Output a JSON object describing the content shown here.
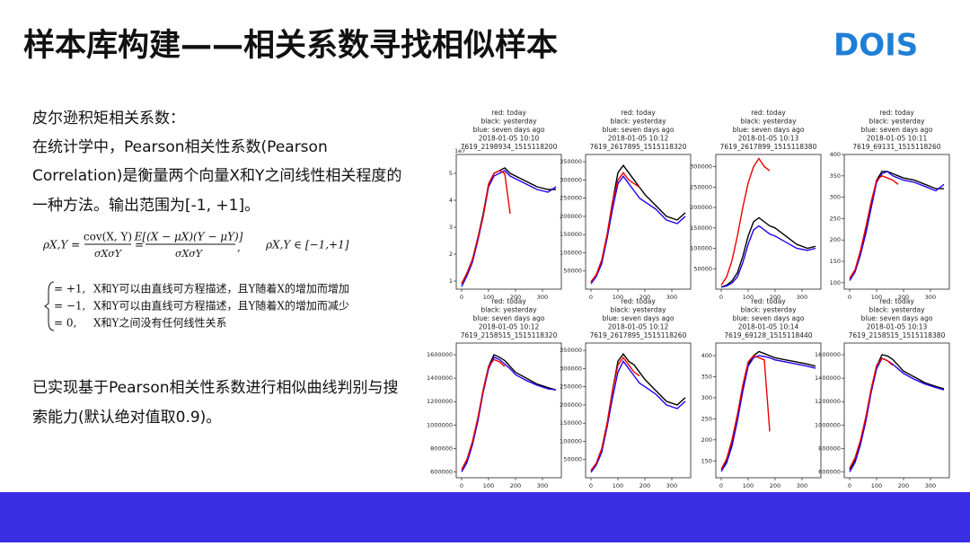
{
  "header": {
    "title": "样本库构建——相关系数寻找相似样本",
    "logo": "DOIS"
  },
  "text": {
    "heading": "皮尔逊积矩相关系数：",
    "body": [
      "在统计学中，Pearson相关性系数(Pearson",
      "Correlation)是衡量两个向量X和Y之间线性相关程度的",
      "一种方法。输出范围为[-1, +1]。"
    ],
    "formula": {
      "lhs": "ρX,Y =",
      "num1": "cov(X, Y)",
      "den1": "σXσY",
      "eq2": "=",
      "num2": "E[(X − μX)(Y − μY)]",
      "den2": "σXσY",
      "comma": ",",
      "range": "ρX,Y ∈ [−1,+1]"
    },
    "cases": [
      {
        "value": "= +1,",
        "text": "X和Y可以由直线可方程描述，且Y随着X的增加而增加"
      },
      {
        "value": "= −1,",
        "text": "X和Y可以由直线可方程描述，且Y随着X的增加而减少"
      },
      {
        "value": "= 0,",
        "text": "X和Y之间没有任何线性关系"
      }
    ],
    "conclusion": [
      "已实现基于Pearson相关性系数进行相似曲线判别与搜",
      "索能力(默认绝对值取0.9)。"
    ]
  },
  "chart_data": [
    {
      "type": "line",
      "title_lines": [
        "red: today",
        "black: yesterday",
        "blue: seven days ago",
        "2018-01-05 10:10",
        "7619_2198934_1515118200"
      ],
      "offset_label": "1e7",
      "x": [
        0,
        20,
        40,
        60,
        80,
        100,
        120,
        140,
        160,
        180,
        200,
        240,
        280,
        320,
        350
      ],
      "xlim": [
        -20,
        370
      ],
      "xticks": [
        0,
        100,
        200,
        300
      ],
      "ylim": [
        0.7,
        5.7
      ],
      "yticks": [
        1,
        2,
        3,
        4,
        5
      ],
      "series": [
        {
          "color": "#000000",
          "values": [
            0.9,
            1.3,
            1.8,
            2.6,
            3.5,
            4.6,
            5.0,
            5.1,
            5.2,
            5.0,
            4.9,
            4.7,
            4.5,
            4.4,
            4.4
          ]
        },
        {
          "color": "#2200ee",
          "values": [
            0.8,
            1.2,
            1.7,
            2.5,
            3.4,
            4.5,
            4.9,
            5.0,
            5.1,
            4.9,
            4.8,
            4.6,
            4.4,
            4.3,
            4.5
          ]
        },
        {
          "color": "#ee0000",
          "values": [
            0.9,
            1.3,
            1.8,
            2.6,
            3.4,
            4.6,
            5.0,
            5.1,
            5.0,
            3.5,
            null,
            null,
            null,
            null,
            null
          ]
        }
      ]
    },
    {
      "type": "line",
      "title_lines": [
        "red: today",
        "black: yesterday",
        "blue: seven days ago",
        "2018-01-05 10:12",
        "7619_2617895_1515118320"
      ],
      "x": [
        0,
        20,
        40,
        60,
        80,
        100,
        120,
        140,
        160,
        180,
        200,
        240,
        280,
        320,
        350
      ],
      "xlim": [
        -20,
        370
      ],
      "xticks": [
        0,
        100,
        200,
        300
      ],
      "ylim": [
        0,
        370000
      ],
      "yticks": [
        50000,
        100000,
        150000,
        200000,
        250000,
        300000,
        350000
      ],
      "series": [
        {
          "color": "#000000",
          "values": [
            20000,
            40000,
            80000,
            150000,
            240000,
            320000,
            340000,
            320000,
            300000,
            280000,
            260000,
            230000,
            200000,
            190000,
            210000
          ]
        },
        {
          "color": "#2200ee",
          "values": [
            15000,
            35000,
            70000,
            140000,
            220000,
            290000,
            310000,
            290000,
            270000,
            250000,
            240000,
            220000,
            190000,
            180000,
            200000
          ]
        },
        {
          "color": "#ee0000",
          "values": [
            20000,
            40000,
            80000,
            150000,
            240000,
            300000,
            320000,
            300000,
            290000,
            280000,
            null,
            null,
            null,
            null,
            null
          ]
        }
      ]
    },
    {
      "type": "line",
      "title_lines": [
        "red: today",
        "black: yesterday",
        "blue: seven days ago",
        "2018-01-05 10:13",
        "7619_2617899_1515118380"
      ],
      "x": [
        0,
        20,
        40,
        60,
        80,
        100,
        120,
        140,
        160,
        180,
        200,
        240,
        280,
        320,
        350
      ],
      "xlim": [
        -20,
        370
      ],
      "xticks": [
        0,
        100,
        200,
        300
      ],
      "ylim": [
        0,
        330000
      ],
      "yticks": [
        50000,
        100000,
        150000,
        200000,
        250000,
        300000
      ],
      "series": [
        {
          "color": "#000000",
          "values": [
            5000,
            10000,
            20000,
            40000,
            80000,
            130000,
            165000,
            175000,
            165000,
            155000,
            150000,
            130000,
            110000,
            100000,
            105000
          ]
        },
        {
          "color": "#2200ee",
          "values": [
            5000,
            8000,
            15000,
            30000,
            65000,
            110000,
            145000,
            155000,
            145000,
            135000,
            130000,
            115000,
            100000,
            95000,
            100000
          ]
        },
        {
          "color": "#ee0000",
          "values": [
            10000,
            30000,
            70000,
            130000,
            200000,
            260000,
            300000,
            320000,
            300000,
            290000,
            null,
            null,
            null,
            null,
            null
          ]
        }
      ]
    },
    {
      "type": "line",
      "title_lines": [
        "red: today",
        "black: yesterday",
        "blue: seven days ago",
        "2018-01-05 10:11",
        "7619_69131_1515118260"
      ],
      "x": [
        0,
        20,
        40,
        60,
        80,
        100,
        120,
        140,
        160,
        180,
        200,
        240,
        280,
        320,
        350
      ],
      "xlim": [
        -20,
        370
      ],
      "xticks": [
        0,
        100,
        200,
        300
      ],
      "ylim": [
        85,
        400
      ],
      "yticks": [
        100,
        150,
        200,
        250,
        300,
        350,
        400
      ],
      "series": [
        {
          "color": "#000000",
          "values": [
            110,
            130,
            170,
            220,
            280,
            340,
            360,
            360,
            355,
            350,
            345,
            340,
            330,
            320,
            320
          ]
        },
        {
          "color": "#2200ee",
          "values": [
            105,
            125,
            165,
            215,
            275,
            335,
            355,
            360,
            350,
            345,
            340,
            335,
            325,
            315,
            330
          ]
        },
        {
          "color": "#ee0000",
          "values": [
            110,
            130,
            175,
            230,
            290,
            340,
            350,
            345,
            340,
            330,
            null,
            null,
            null,
            null,
            null
          ]
        }
      ]
    },
    {
      "type": "line",
      "title_lines": [
        "red: today",
        "black: yesterday",
        "blue: seven days ago",
        "2018-01-05 10:12",
        "7619_2158515_1515118320"
      ],
      "x": [
        0,
        20,
        40,
        60,
        80,
        100,
        120,
        140,
        160,
        180,
        200,
        240,
        280,
        320,
        350
      ],
      "xlim": [
        -20,
        370
      ],
      "xticks": [
        0,
        100,
        200,
        300
      ],
      "ylim": [
        550000,
        1700000
      ],
      "yticks": [
        600000,
        800000,
        1000000,
        1200000,
        1400000,
        1600000
      ],
      "series": [
        {
          "color": "#000000",
          "values": [
            620000,
            700000,
            850000,
            1050000,
            1300000,
            1500000,
            1600000,
            1580000,
            1550000,
            1500000,
            1450000,
            1400000,
            1350000,
            1320000,
            1300000
          ]
        },
        {
          "color": "#2200ee",
          "values": [
            600000,
            680000,
            830000,
            1030000,
            1280000,
            1480000,
            1580000,
            1560000,
            1520000,
            1480000,
            1430000,
            1380000,
            1340000,
            1310000,
            1300000
          ]
        },
        {
          "color": "#ee0000",
          "values": [
            620000,
            710000,
            860000,
            1060000,
            1300000,
            1500000,
            1560000,
            1540000,
            1500000,
            null,
            null,
            null,
            null,
            null,
            null
          ]
        }
      ]
    },
    {
      "type": "line",
      "title_lines": [
        "red: today",
        "black: yesterday",
        "blue: seven days ago",
        "2018-01-05 10:12",
        "7619_2617895_1515118260"
      ],
      "x": [
        0,
        20,
        40,
        60,
        80,
        100,
        120,
        140,
        160,
        180,
        200,
        240,
        280,
        320,
        350
      ],
      "xlim": [
        -20,
        370
      ],
      "xticks": [
        0,
        100,
        200,
        300
      ],
      "ylim": [
        0,
        370000
      ],
      "yticks": [
        50000,
        100000,
        150000,
        200000,
        250000,
        300000,
        350000
      ],
      "series": [
        {
          "color": "#000000",
          "values": [
            20000,
            40000,
            80000,
            150000,
            240000,
            320000,
            340000,
            320000,
            310000,
            290000,
            270000,
            240000,
            210000,
            200000,
            220000
          ]
        },
        {
          "color": "#2200ee",
          "values": [
            15000,
            35000,
            70000,
            140000,
            220000,
            290000,
            320000,
            300000,
            280000,
            260000,
            250000,
            230000,
            200000,
            190000,
            210000
          ]
        },
        {
          "color": "#ee0000",
          "values": [
            20000,
            40000,
            80000,
            150000,
            240000,
            310000,
            330000,
            310000,
            290000,
            280000,
            null,
            null,
            null,
            null,
            null
          ]
        }
      ]
    },
    {
      "type": "line",
      "title_lines": [
        "red: today",
        "black: yesterday",
        "blue: seven days ago",
        "2018-01-05 10:14",
        "7619_69128_1515118440"
      ],
      "x": [
        0,
        20,
        40,
        60,
        80,
        100,
        120,
        140,
        160,
        180,
        200,
        240,
        280,
        320,
        350
      ],
      "xlim": [
        -20,
        370
      ],
      "xticks": [
        0,
        100,
        200,
        300
      ],
      "ylim": [
        110,
        430
      ],
      "yticks": [
        150,
        200,
        250,
        300,
        350,
        400
      ],
      "series": [
        {
          "color": "#000000",
          "values": [
            130,
            150,
            190,
            250,
            320,
            380,
            400,
            410,
            405,
            400,
            395,
            390,
            385,
            380,
            375
          ]
        },
        {
          "color": "#2200ee",
          "values": [
            125,
            145,
            185,
            245,
            315,
            375,
            395,
            400,
            398,
            395,
            390,
            385,
            380,
            375,
            370
          ]
        },
        {
          "color": "#ee0000",
          "values": [
            130,
            155,
            200,
            260,
            330,
            385,
            400,
            395,
            390,
            220,
            null,
            null,
            null,
            null,
            null
          ]
        }
      ]
    },
    {
      "type": "line",
      "title_lines": [
        "red: today",
        "black: yesterday",
        "blue: seven days ago",
        "2018-01-05 10:13",
        "7619_2158515_1515118380"
      ],
      "x": [
        0,
        20,
        40,
        60,
        80,
        100,
        120,
        140,
        160,
        180,
        200,
        240,
        280,
        320,
        350
      ],
      "xlim": [
        -20,
        370
      ],
      "xticks": [
        0,
        100,
        200,
        300
      ],
      "ylim": [
        550000,
        1700000
      ],
      "yticks": [
        600000,
        800000,
        1000000,
        1200000,
        1400000,
        1600000
      ],
      "series": [
        {
          "color": "#000000",
          "values": [
            620000,
            700000,
            850000,
            1050000,
            1300000,
            1500000,
            1600000,
            1590000,
            1560000,
            1510000,
            1460000,
            1410000,
            1360000,
            1330000,
            1310000
          ]
        },
        {
          "color": "#2200ee",
          "values": [
            600000,
            680000,
            830000,
            1030000,
            1280000,
            1480000,
            1570000,
            1550000,
            1520000,
            1480000,
            1440000,
            1390000,
            1350000,
            1320000,
            1300000
          ]
        },
        {
          "color": "#ee0000",
          "values": [
            630000,
            720000,
            870000,
            1070000,
            1310000,
            1510000,
            1570000,
            1550000,
            1510000,
            null,
            null,
            null,
            null,
            null,
            null
          ]
        }
      ]
    }
  ]
}
